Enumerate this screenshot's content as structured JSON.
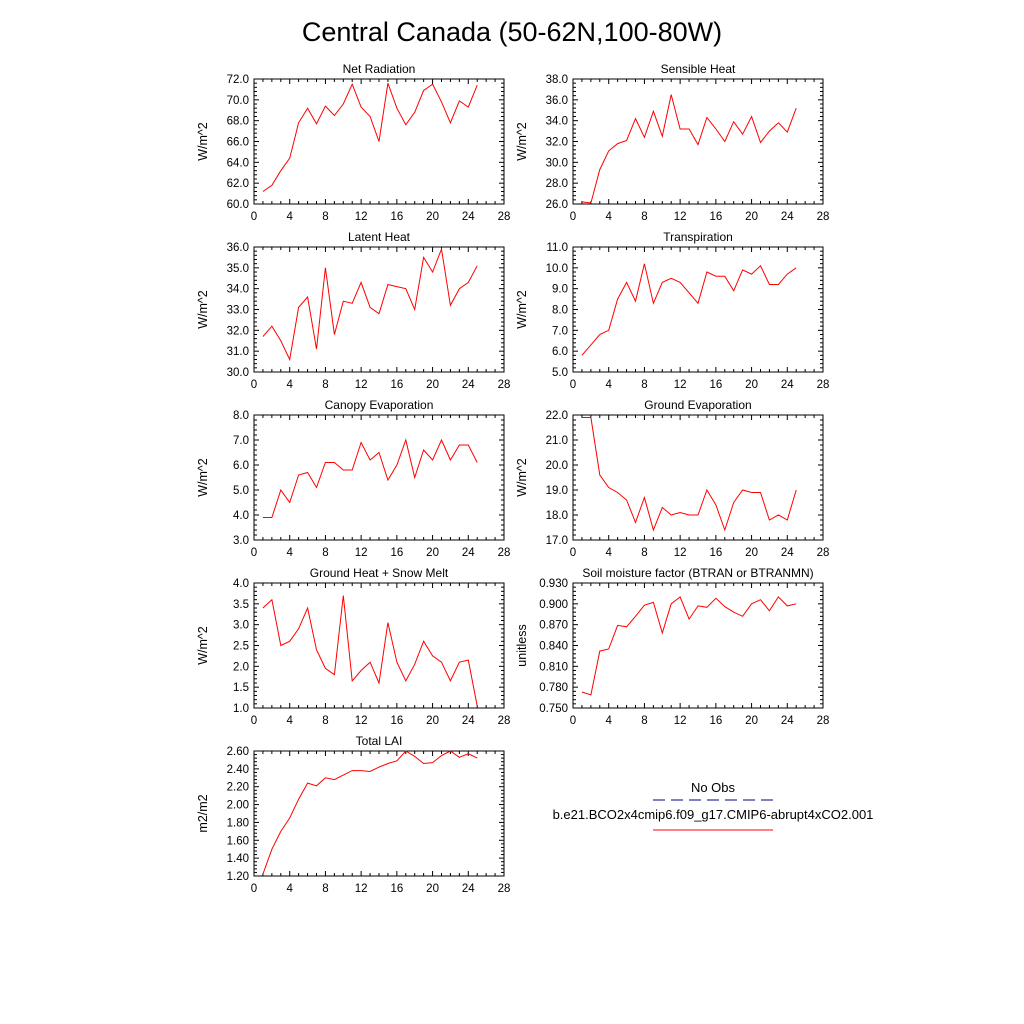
{
  "title": "Central Canada (50-62N,100-80W)",
  "legend": {
    "entries": [
      {
        "label": "No Obs",
        "color": "#00008b",
        "style": "dashed"
      },
      {
        "label": "b.e21.BCO2x4cmip6.f09_g17.CMIP6-abrupt4xCO2.001",
        "color": "#ff0000",
        "style": "solid"
      }
    ]
  },
  "chart_data": [
    {
      "type": "line",
      "title": "Net Radiation",
      "ylabel": "W/m^2",
      "xlim": [
        0,
        28
      ],
      "ylim": [
        60.0,
        72.0
      ],
      "xticks": [
        "0",
        "4",
        "8",
        "12",
        "16",
        "20",
        "24",
        "28"
      ],
      "yticks": [
        "60.0",
        "62.0",
        "64.0",
        "66.0",
        "68.0",
        "70.0",
        "72.0"
      ],
      "x": [
        1,
        2,
        3,
        4,
        5,
        6,
        7,
        8,
        9,
        10,
        11,
        12,
        13,
        14,
        15,
        16,
        17,
        18,
        19,
        20,
        21,
        22,
        23,
        24,
        25
      ],
      "series": [
        {
          "color": "#ff0000",
          "values": [
            61.2,
            61.8,
            63.2,
            64.4,
            67.8,
            69.2,
            67.7,
            69.4,
            68.5,
            69.6,
            71.5,
            69.3,
            68.4,
            66.0,
            71.6,
            69.2,
            67.6,
            68.8,
            70.9,
            71.5,
            69.8,
            67.8,
            69.9,
            69.3,
            71.4
          ]
        }
      ]
    },
    {
      "type": "line",
      "title": "Sensible Heat",
      "ylabel": "W/m^2",
      "xlim": [
        0,
        28
      ],
      "ylim": [
        26.0,
        38.0
      ],
      "xticks": [
        "0",
        "4",
        "8",
        "12",
        "16",
        "20",
        "24",
        "28"
      ],
      "yticks": [
        "26.0",
        "28.0",
        "30.0",
        "32.0",
        "34.0",
        "36.0",
        "38.0"
      ],
      "x": [
        1,
        2,
        3,
        4,
        5,
        6,
        7,
        8,
        9,
        10,
        11,
        12,
        13,
        14,
        15,
        16,
        17,
        18,
        19,
        20,
        21,
        22,
        23,
        24,
        25
      ],
      "series": [
        {
          "color": "#ff0000",
          "values": [
            26.2,
            26.1,
            29.3,
            31.1,
            31.8,
            32.1,
            34.2,
            32.4,
            34.9,
            32.5,
            36.5,
            33.2,
            33.2,
            31.7,
            34.3,
            33.2,
            32.0,
            33.9,
            32.7,
            34.4,
            31.9,
            33.0,
            33.8,
            32.9,
            35.2
          ]
        }
      ]
    },
    {
      "type": "line",
      "title": "Latent Heat",
      "ylabel": "W/m^2",
      "xlim": [
        0,
        28
      ],
      "ylim": [
        30.0,
        36.0
      ],
      "xticks": [
        "0",
        "4",
        "8",
        "12",
        "16",
        "20",
        "24",
        "28"
      ],
      "yticks": [
        "30.0",
        "31.0",
        "32.0",
        "33.0",
        "34.0",
        "35.0",
        "36.0"
      ],
      "x": [
        1,
        2,
        3,
        4,
        5,
        6,
        7,
        8,
        9,
        10,
        11,
        12,
        13,
        14,
        15,
        16,
        17,
        18,
        19,
        20,
        21,
        22,
        23,
        24,
        25
      ],
      "series": [
        {
          "color": "#ff0000",
          "values": [
            31.7,
            32.2,
            31.5,
            30.6,
            33.1,
            33.6,
            31.1,
            35.0,
            31.8,
            33.4,
            33.3,
            34.3,
            33.1,
            32.8,
            34.2,
            34.1,
            34.0,
            33.0,
            35.5,
            34.8,
            35.9,
            33.2,
            34.0,
            34.3,
            35.1
          ]
        }
      ]
    },
    {
      "type": "line",
      "title": "Transpiration",
      "ylabel": "W/m^2",
      "xlim": [
        0,
        28
      ],
      "ylim": [
        5.0,
        11.0
      ],
      "xticks": [
        "0",
        "4",
        "8",
        "12",
        "16",
        "20",
        "24",
        "28"
      ],
      "yticks": [
        "5.0",
        "6.0",
        "7.0",
        "8.0",
        "9.0",
        "10.0",
        "11.0"
      ],
      "x": [
        1,
        2,
        3,
        4,
        5,
        6,
        7,
        8,
        9,
        10,
        11,
        12,
        13,
        14,
        15,
        16,
        17,
        18,
        19,
        20,
        21,
        22,
        23,
        24,
        25
      ],
      "series": [
        {
          "color": "#ff0000",
          "values": [
            5.8,
            6.3,
            6.8,
            7.0,
            8.5,
            9.3,
            8.4,
            10.2,
            8.3,
            9.3,
            9.5,
            9.3,
            8.8,
            8.3,
            9.8,
            9.6,
            9.6,
            8.9,
            9.9,
            9.7,
            10.1,
            9.2,
            9.2,
            9.7,
            10.0
          ]
        }
      ]
    },
    {
      "type": "line",
      "title": "Canopy Evaporation",
      "ylabel": "W/m^2",
      "xlim": [
        0,
        28
      ],
      "ylim": [
        3.0,
        8.0
      ],
      "xticks": [
        "0",
        "4",
        "8",
        "12",
        "16",
        "20",
        "24",
        "28"
      ],
      "yticks": [
        "3.0",
        "4.0",
        "5.0",
        "6.0",
        "7.0",
        "8.0"
      ],
      "x": [
        1,
        2,
        3,
        4,
        5,
        6,
        7,
        8,
        9,
        10,
        11,
        12,
        13,
        14,
        15,
        16,
        17,
        18,
        19,
        20,
        21,
        22,
        23,
        24,
        25
      ],
      "series": [
        {
          "color": "#ff0000",
          "values": [
            3.9,
            3.9,
            5.0,
            4.5,
            5.6,
            5.7,
            5.1,
            6.1,
            6.1,
            5.8,
            5.8,
            6.9,
            6.2,
            6.5,
            5.4,
            6.0,
            7.0,
            5.5,
            6.6,
            6.2,
            7.0,
            6.2,
            6.8,
            6.8,
            6.1
          ]
        }
      ]
    },
    {
      "type": "line",
      "title": "Ground Evaporation",
      "ylabel": "W/m^2",
      "xlim": [
        0,
        28
      ],
      "ylim": [
        17.0,
        22.0
      ],
      "xticks": [
        "0",
        "4",
        "8",
        "12",
        "16",
        "20",
        "24",
        "28"
      ],
      "yticks": [
        "17.0",
        "18.0",
        "19.0",
        "20.0",
        "21.0",
        "22.0"
      ],
      "x": [
        1,
        2,
        3,
        4,
        5,
        6,
        7,
        8,
        9,
        10,
        11,
        12,
        13,
        14,
        15,
        16,
        17,
        18,
        19,
        20,
        21,
        22,
        23,
        24,
        25
      ],
      "series": [
        {
          "color": "#ff0000",
          "values": [
            21.9,
            21.9,
            19.6,
            19.1,
            18.9,
            18.6,
            17.7,
            18.7,
            17.4,
            18.3,
            18.0,
            18.1,
            18.0,
            18.0,
            19.0,
            18.4,
            17.4,
            18.5,
            19.0,
            18.9,
            18.9,
            17.8,
            18.0,
            17.8,
            19.0
          ]
        }
      ]
    },
    {
      "type": "line",
      "title": "Ground Heat + Snow Melt",
      "ylabel": "W/m^2",
      "xlim": [
        0,
        28
      ],
      "ylim": [
        1.0,
        4.0
      ],
      "xticks": [
        "0",
        "4",
        "8",
        "12",
        "16",
        "20",
        "24",
        "28"
      ],
      "yticks": [
        "1.0",
        "1.5",
        "2.0",
        "2.5",
        "3.0",
        "3.5",
        "4.0"
      ],
      "x": [
        1,
        2,
        3,
        4,
        5,
        6,
        7,
        8,
        9,
        10,
        11,
        12,
        13,
        14,
        15,
        16,
        17,
        18,
        19,
        20,
        21,
        22,
        23,
        24,
        25
      ],
      "series": [
        {
          "color": "#ff0000",
          "values": [
            3.4,
            3.6,
            2.5,
            2.6,
            2.9,
            3.4,
            2.4,
            1.95,
            1.8,
            3.7,
            1.65,
            1.9,
            2.1,
            1.6,
            3.05,
            2.1,
            1.65,
            2.05,
            2.6,
            2.25,
            2.1,
            1.65,
            2.1,
            2.15,
            1.05
          ]
        }
      ]
    },
    {
      "type": "line",
      "title": "Soil moisture factor (BTRAN or BTRANMN)",
      "ylabel": "unitless",
      "xlim": [
        0,
        28
      ],
      "ylim": [
        0.75,
        0.93
      ],
      "xticks": [
        "0",
        "4",
        "8",
        "12",
        "16",
        "20",
        "24",
        "28"
      ],
      "yticks": [
        "0.750",
        "0.780",
        "0.810",
        "0.840",
        "0.870",
        "0.900",
        "0.930"
      ],
      "x": [
        1,
        2,
        3,
        4,
        5,
        6,
        7,
        8,
        9,
        10,
        11,
        12,
        13,
        14,
        15,
        16,
        17,
        18,
        19,
        20,
        21,
        22,
        23,
        24,
        25
      ],
      "series": [
        {
          "color": "#ff0000",
          "values": [
            0.773,
            0.769,
            0.832,
            0.835,
            0.869,
            0.867,
            0.882,
            0.898,
            0.902,
            0.858,
            0.9,
            0.91,
            0.878,
            0.897,
            0.895,
            0.908,
            0.896,
            0.888,
            0.882,
            0.9,
            0.906,
            0.89,
            0.91,
            0.897,
            0.9
          ]
        }
      ]
    },
    {
      "type": "line",
      "title": "Total LAI",
      "ylabel": "m2/m2",
      "xlim": [
        0,
        28
      ],
      "ylim": [
        1.2,
        2.6
      ],
      "xticks": [
        "0",
        "4",
        "8",
        "12",
        "16",
        "20",
        "24",
        "28"
      ],
      "yticks": [
        "1.20",
        "1.40",
        "1.60",
        "1.80",
        "2.00",
        "2.20",
        "2.40",
        "2.60"
      ],
      "x": [
        1,
        2,
        3,
        4,
        5,
        6,
        7,
        8,
        9,
        10,
        11,
        12,
        13,
        14,
        15,
        16,
        17,
        18,
        19,
        20,
        21,
        22,
        23,
        24,
        25
      ],
      "series": [
        {
          "color": "#ff0000",
          "values": [
            1.22,
            1.5,
            1.7,
            1.85,
            2.06,
            2.24,
            2.21,
            2.3,
            2.28,
            2.33,
            2.38,
            2.38,
            2.37,
            2.42,
            2.46,
            2.49,
            2.6,
            2.54,
            2.46,
            2.47,
            2.55,
            2.6,
            2.53,
            2.57,
            2.52
          ]
        }
      ]
    }
  ]
}
